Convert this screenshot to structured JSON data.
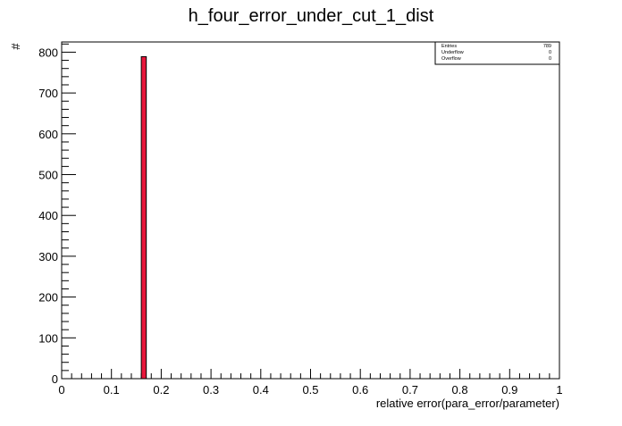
{
  "chart_data": {
    "type": "bar",
    "title": "h_four_error_under_cut_1_dist",
    "xlabel": "relative error(para_error/parameter)",
    "ylabel": "#",
    "xlim": [
      0,
      1
    ],
    "ylim": [
      0,
      825
    ],
    "x_ticks": [
      "0",
      "0.1",
      "0.2",
      "0.3",
      "0.4",
      "0.5",
      "0.6",
      "0.7",
      "0.8",
      "0.9",
      "1"
    ],
    "y_ticks": [
      "0",
      "100",
      "200",
      "300",
      "400",
      "500",
      "600",
      "700",
      "800"
    ],
    "bins": [
      {
        "x_low": 0.16,
        "x_high": 0.17,
        "value": 789
      }
    ],
    "bar_fill": "#e8173c",
    "bar_edge": "#000000",
    "grid": false,
    "legend": "none",
    "stats_box": {
      "placement": "top-right",
      "rows": [
        {
          "label": "Entries",
          "value": "789"
        },
        {
          "label": "Underflow",
          "value": "0"
        },
        {
          "label": "Overflow",
          "value": "0"
        }
      ]
    }
  }
}
